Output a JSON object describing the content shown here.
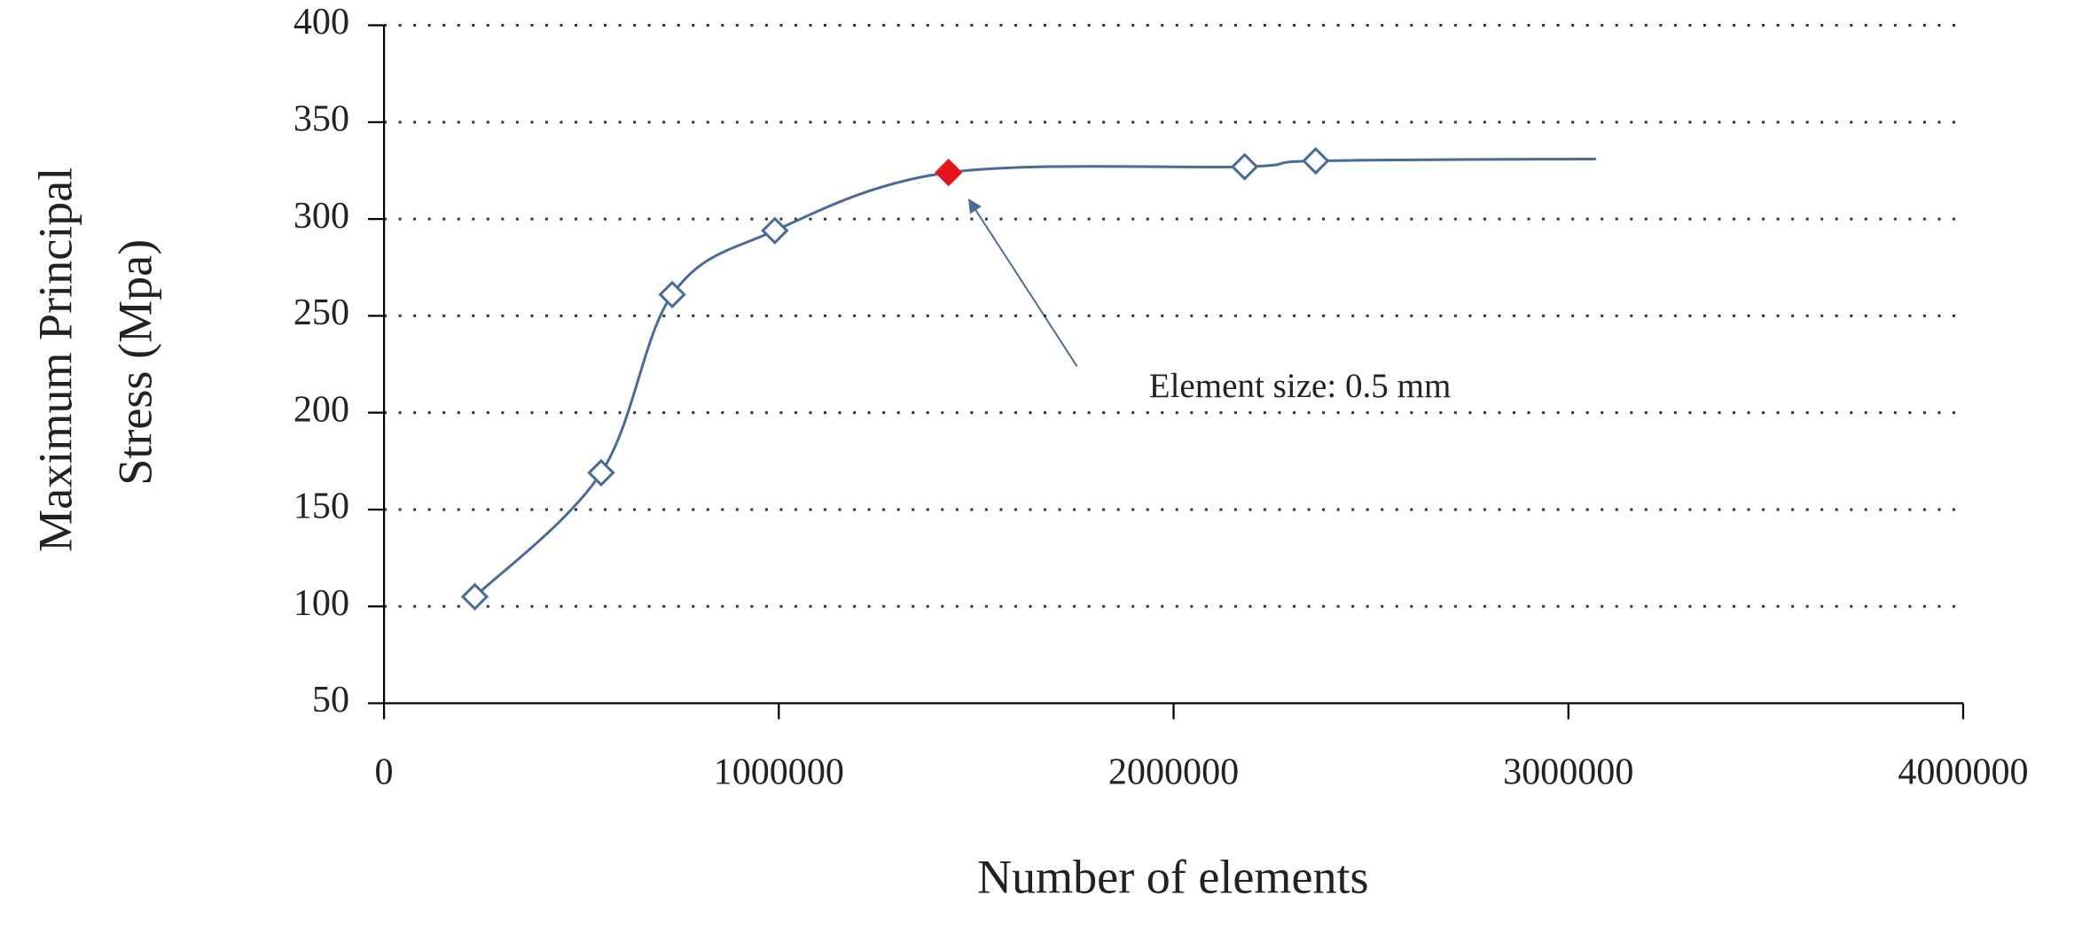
{
  "chart_data": {
    "type": "line",
    "xlabel": "Number of elements",
    "ylabel": [
      "Maximum Principal",
      "Stress  (Mpa)"
    ],
    "annotation": "Element size: 0.5 mm",
    "xlim": [
      0,
      4000000
    ],
    "xticks": [
      0,
      1000000,
      2000000,
      3000000,
      4000000
    ],
    "ylim": [
      50,
      400
    ],
    "yticks": [
      50,
      100,
      150,
      200,
      250,
      300,
      350,
      400
    ],
    "grid": true,
    "smooth": true,
    "series": [
      {
        "name": "Maximum principal stress",
        "color": "#4a6b9a",
        "x": [
          230000,
          550000,
          730000,
          990000,
          1430000,
          2180000,
          2360000,
          3070000
        ],
        "values": [
          105,
          169,
          261,
          294,
          324,
          327,
          330,
          331
        ],
        "marker_colors": [
          "#ffffff",
          "#ffffff",
          "#ffffff",
          "#ffffff",
          "#e8141c",
          "#ffffff",
          "#ffffff",
          null
        ]
      }
    ]
  }
}
